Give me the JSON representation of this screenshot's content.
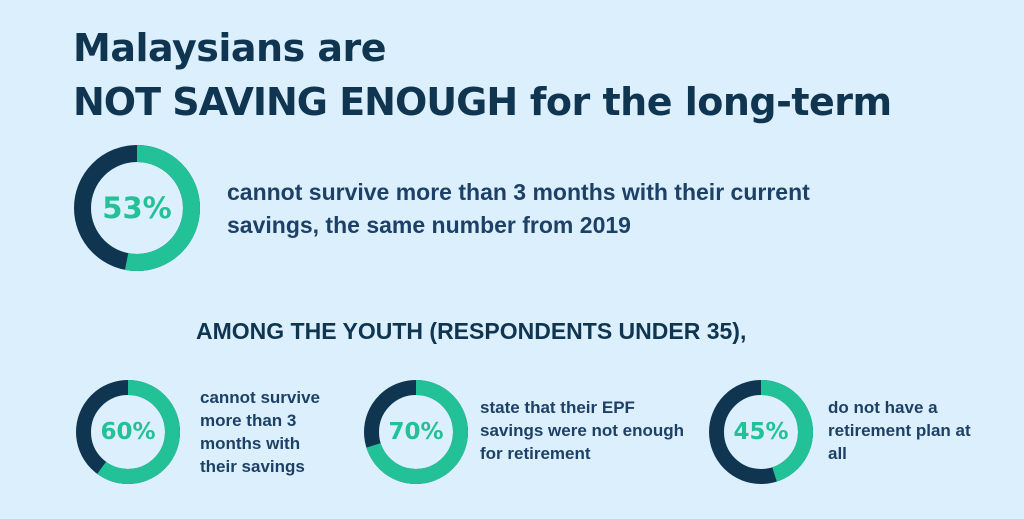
{
  "title": {
    "line1": "Malaysians are",
    "line2_emphasis": "NOT SAVING ENOUGH",
    "line2_rest": " for the long-term"
  },
  "colors": {
    "background": "#dbeffc",
    "ring_fill": "#22c197",
    "ring_rest": "#0f3550",
    "text_dark": "#0f3550"
  },
  "main_stat": {
    "percent_label": "53%",
    "value": 0.53,
    "description": "cannot survive more than 3 months with their current savings, the same number from 2019"
  },
  "youth": {
    "heading": "AMONG THE YOUTH (RESPONDENTS UNDER 35),",
    "stats": [
      {
        "percent_label": "60%",
        "value": 0.6,
        "description": "cannot survive more than 3 months with their savings"
      },
      {
        "percent_label": "70%",
        "value": 0.7,
        "description": "state that their EPF savings were not enough for retirement"
      },
      {
        "percent_label": "45%",
        "value": 0.45,
        "description": "do not have a retirement plan at all"
      }
    ]
  }
}
